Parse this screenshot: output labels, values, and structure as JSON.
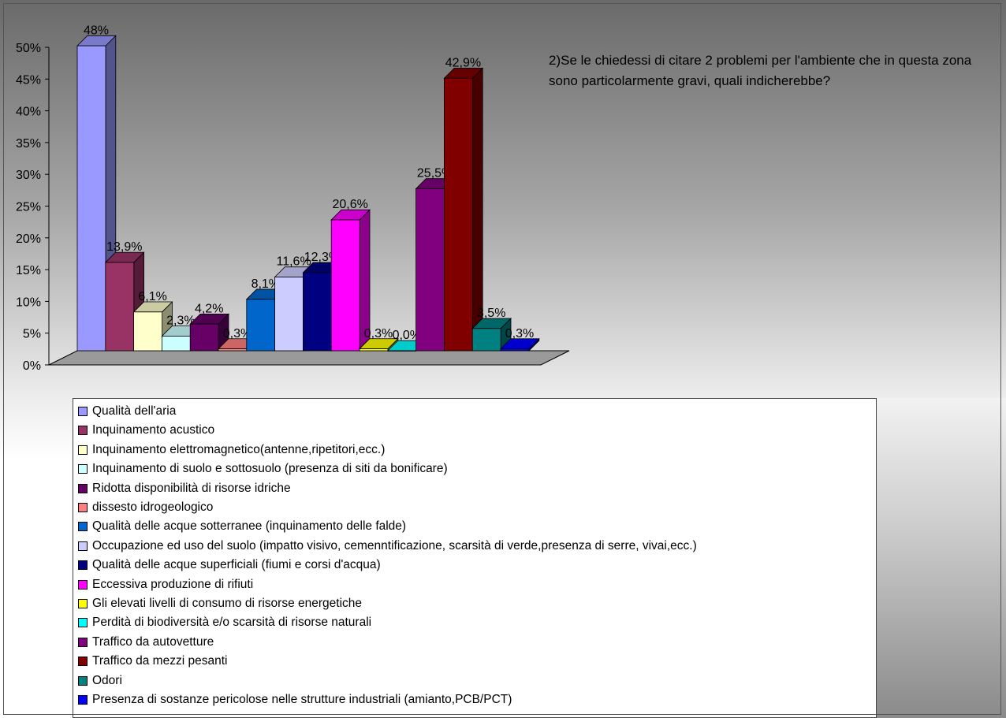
{
  "chart_data": {
    "type": "bar",
    "title": "2)Se le chiedessi di citare 2 problemi per l'ambiente che in questa zona sono particolarmente gravi, quali indicherebbe?",
    "ylim": [
      0,
      50
    ],
    "y_ticks": [
      "0%",
      "5%",
      "10%",
      "15%",
      "20%",
      "25%",
      "30%",
      "35%",
      "40%",
      "45%",
      "50%"
    ],
    "legend_position": "bottom",
    "series": [
      {
        "name": "Qualità dell'aria",
        "value": 48,
        "label": "48%",
        "color": "#9999ff"
      },
      {
        "name": "Inquinamento acustico",
        "value": 13.9,
        "label": "13,9%",
        "color": "#993366"
      },
      {
        "name": "Inquinamento elettromagnetico(antenne,ripetitori,ecc.)",
        "value": 6.1,
        "label": "6,1%",
        "color": "#ffffcc"
      },
      {
        "name": "Inquinamento di suolo e sottosuolo (presenza di siti da bonificare)",
        "value": 2.3,
        "label": "2,3%",
        "color": "#ccffff"
      },
      {
        "name": "Ridotta disponibilità di risorse idriche",
        "value": 4.2,
        "label": "4,2%",
        "color": "#660066"
      },
      {
        "name": "dissesto idrogeologico",
        "value": 0.3,
        "label": "0,3%",
        "color": "#ff8080"
      },
      {
        "name": "Qualità delle acque sotterranee (inquinamento delle falde)",
        "value": 8.1,
        "label": "8,1%",
        "color": "#0066cc"
      },
      {
        "name": "Occupazione ed uso del suolo (impatto visivo, cemenntificazione, scarsità di verde,presenza di serre, vivai,ecc.)",
        "value": 11.6,
        "label": "11,6%",
        "color": "#ccccff"
      },
      {
        "name": "Qualità delle acque superficiali (fiumi e corsi d'acqua)",
        "value": 12.3,
        "label": "12,3%",
        "color": "#000080"
      },
      {
        "name": "Eccessiva produzione di rifiuti",
        "value": 20.6,
        "label": "20,6%",
        "color": "#ff00ff"
      },
      {
        "name": "Gli elevati livelli di consumo di risorse energetiche",
        "value": 0.3,
        "label": "0,3%",
        "color": "#ffff00"
      },
      {
        "name": "Perdità di biodiversità e/o scarsità di risorse naturali",
        "value": 0.0,
        "label": "0,0%",
        "color": "#00ffff"
      },
      {
        "name": "Traffico da autovetture",
        "value": 25.5,
        "label": "25,5%",
        "color": "#800080"
      },
      {
        "name": "Traffico da mezzi pesanti",
        "value": 42.9,
        "label": "42,9%",
        "color": "#800000"
      },
      {
        "name": "Odori",
        "value": 3.5,
        "label": "3,5%",
        "color": "#008080"
      },
      {
        "name": "Presenza di sostanze pericolose nelle strutture industriali (amianto,PCB/PCT)",
        "value": 0.3,
        "label": "0,3%",
        "color": "#0000ff"
      }
    ]
  }
}
